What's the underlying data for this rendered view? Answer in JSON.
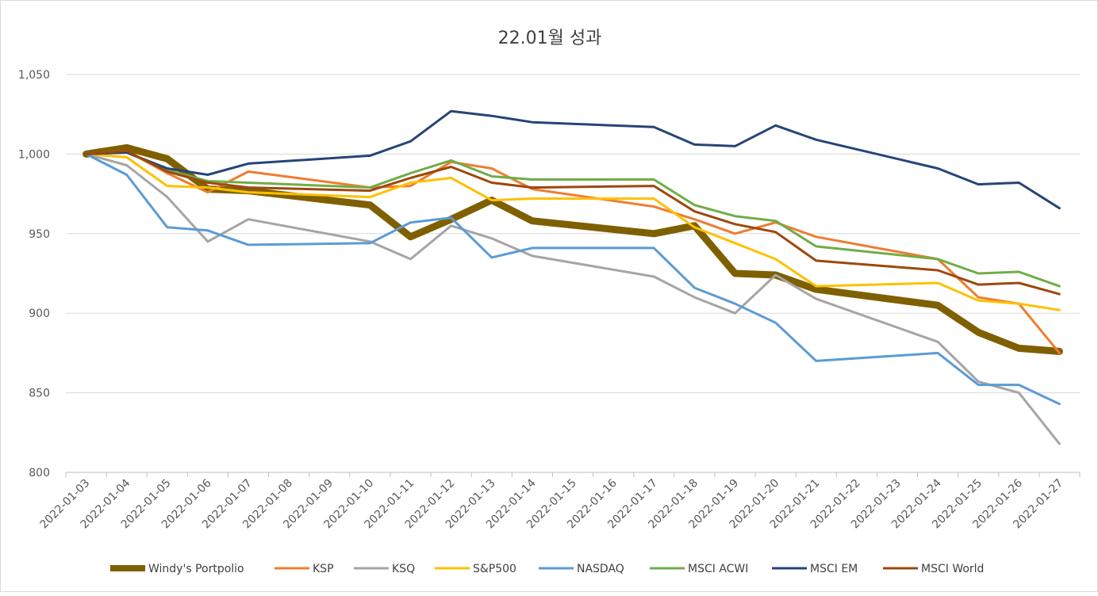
{
  "chart_data": {
    "type": "line",
    "title": "22.01월 성과",
    "xlabel": "",
    "ylabel": "",
    "ylim": [
      800,
      1050
    ],
    "yticks": [
      800,
      850,
      900,
      950,
      1000,
      1050
    ],
    "ytick_labels": [
      "800",
      "850",
      "900",
      "950",
      "1,000",
      "1,050"
    ],
    "grid": true,
    "legend_position": "bottom",
    "x": [
      "2022-01-03",
      "2022-01-04",
      "2022-01-05",
      "2022-01-06",
      "2022-01-07",
      "2022-01-08",
      "2022-01-09",
      "2022-01-10",
      "2022-01-11",
      "2022-01-12",
      "2022-01-13",
      "2022-01-14",
      "2022-01-15",
      "2022-01-16",
      "2022-01-17",
      "2022-01-18",
      "2022-01-19",
      "2022-01-20",
      "2022-01-21",
      "2022-01-22",
      "2022-01-23",
      "2022-01-24",
      "2022-01-25",
      "2022-01-26",
      "2022-01-27"
    ],
    "series": [
      {
        "name": "Windy's Portpolio",
        "color": "#7f6000",
        "width": 9,
        "values": [
          1000,
          1004,
          997,
          978,
          977,
          null,
          null,
          968,
          948,
          959,
          971,
          958,
          null,
          null,
          950,
          955,
          925,
          924,
          915,
          null,
          null,
          905,
          888,
          878,
          876
        ]
      },
      {
        "name": "KSP",
        "color": "#ed7d31",
        "width": 3,
        "values": [
          1000,
          1002,
          988,
          976,
          989,
          null,
          null,
          979,
          980,
          995,
          991,
          978,
          null,
          null,
          967,
          959,
          950,
          957,
          948,
          null,
          null,
          934,
          910,
          906,
          875
        ]
      },
      {
        "name": "KSQ",
        "color": "#a5a5a5",
        "width": 3,
        "values": [
          1000,
          993,
          973,
          945,
          959,
          null,
          null,
          945,
          934,
          955,
          947,
          936,
          null,
          null,
          923,
          910,
          900,
          924,
          909,
          null,
          null,
          882,
          857,
          850,
          818
        ]
      },
      {
        "name": "S&P500",
        "color": "#ffc000",
        "width": 3,
        "values": [
          1000,
          998,
          980,
          979,
          976,
          null,
          null,
          973,
          982,
          985,
          971,
          972,
          null,
          null,
          972,
          954,
          944,
          934,
          917,
          null,
          null,
          919,
          908,
          906,
          902
        ]
      },
      {
        "name": "NASDAQ",
        "color": "#5b9bd5",
        "width": 3,
        "values": [
          1000,
          987,
          954,
          952,
          943,
          null,
          null,
          944,
          957,
          960,
          935,
          941,
          null,
          null,
          941,
          916,
          906,
          894,
          870,
          null,
          null,
          875,
          855,
          855,
          843
        ]
      },
      {
        "name": "MSCI ACWI",
        "color": "#70ad47",
        "width": 3,
        "values": [
          1000,
          1001,
          990,
          983,
          982,
          null,
          null,
          979,
          988,
          996,
          986,
          984,
          null,
          null,
          984,
          968,
          961,
          958,
          942,
          null,
          null,
          934,
          925,
          926,
          917
        ]
      },
      {
        "name": "MSCI EM",
        "color": "#264478",
        "width": 3,
        "values": [
          1000,
          1001,
          991,
          987,
          994,
          null,
          null,
          999,
          1008,
          1027,
          1024,
          1020,
          null,
          null,
          1017,
          1006,
          1005,
          1018,
          1009,
          null,
          null,
          991,
          981,
          982,
          966
        ]
      },
      {
        "name": "MSCI World",
        "color": "#9e480e",
        "width": 3,
        "values": [
          1000,
          1002,
          989,
          982,
          979,
          null,
          null,
          977,
          985,
          992,
          982,
          979,
          null,
          null,
          980,
          964,
          956,
          951,
          933,
          null,
          null,
          927,
          918,
          919,
          912
        ]
      }
    ]
  }
}
